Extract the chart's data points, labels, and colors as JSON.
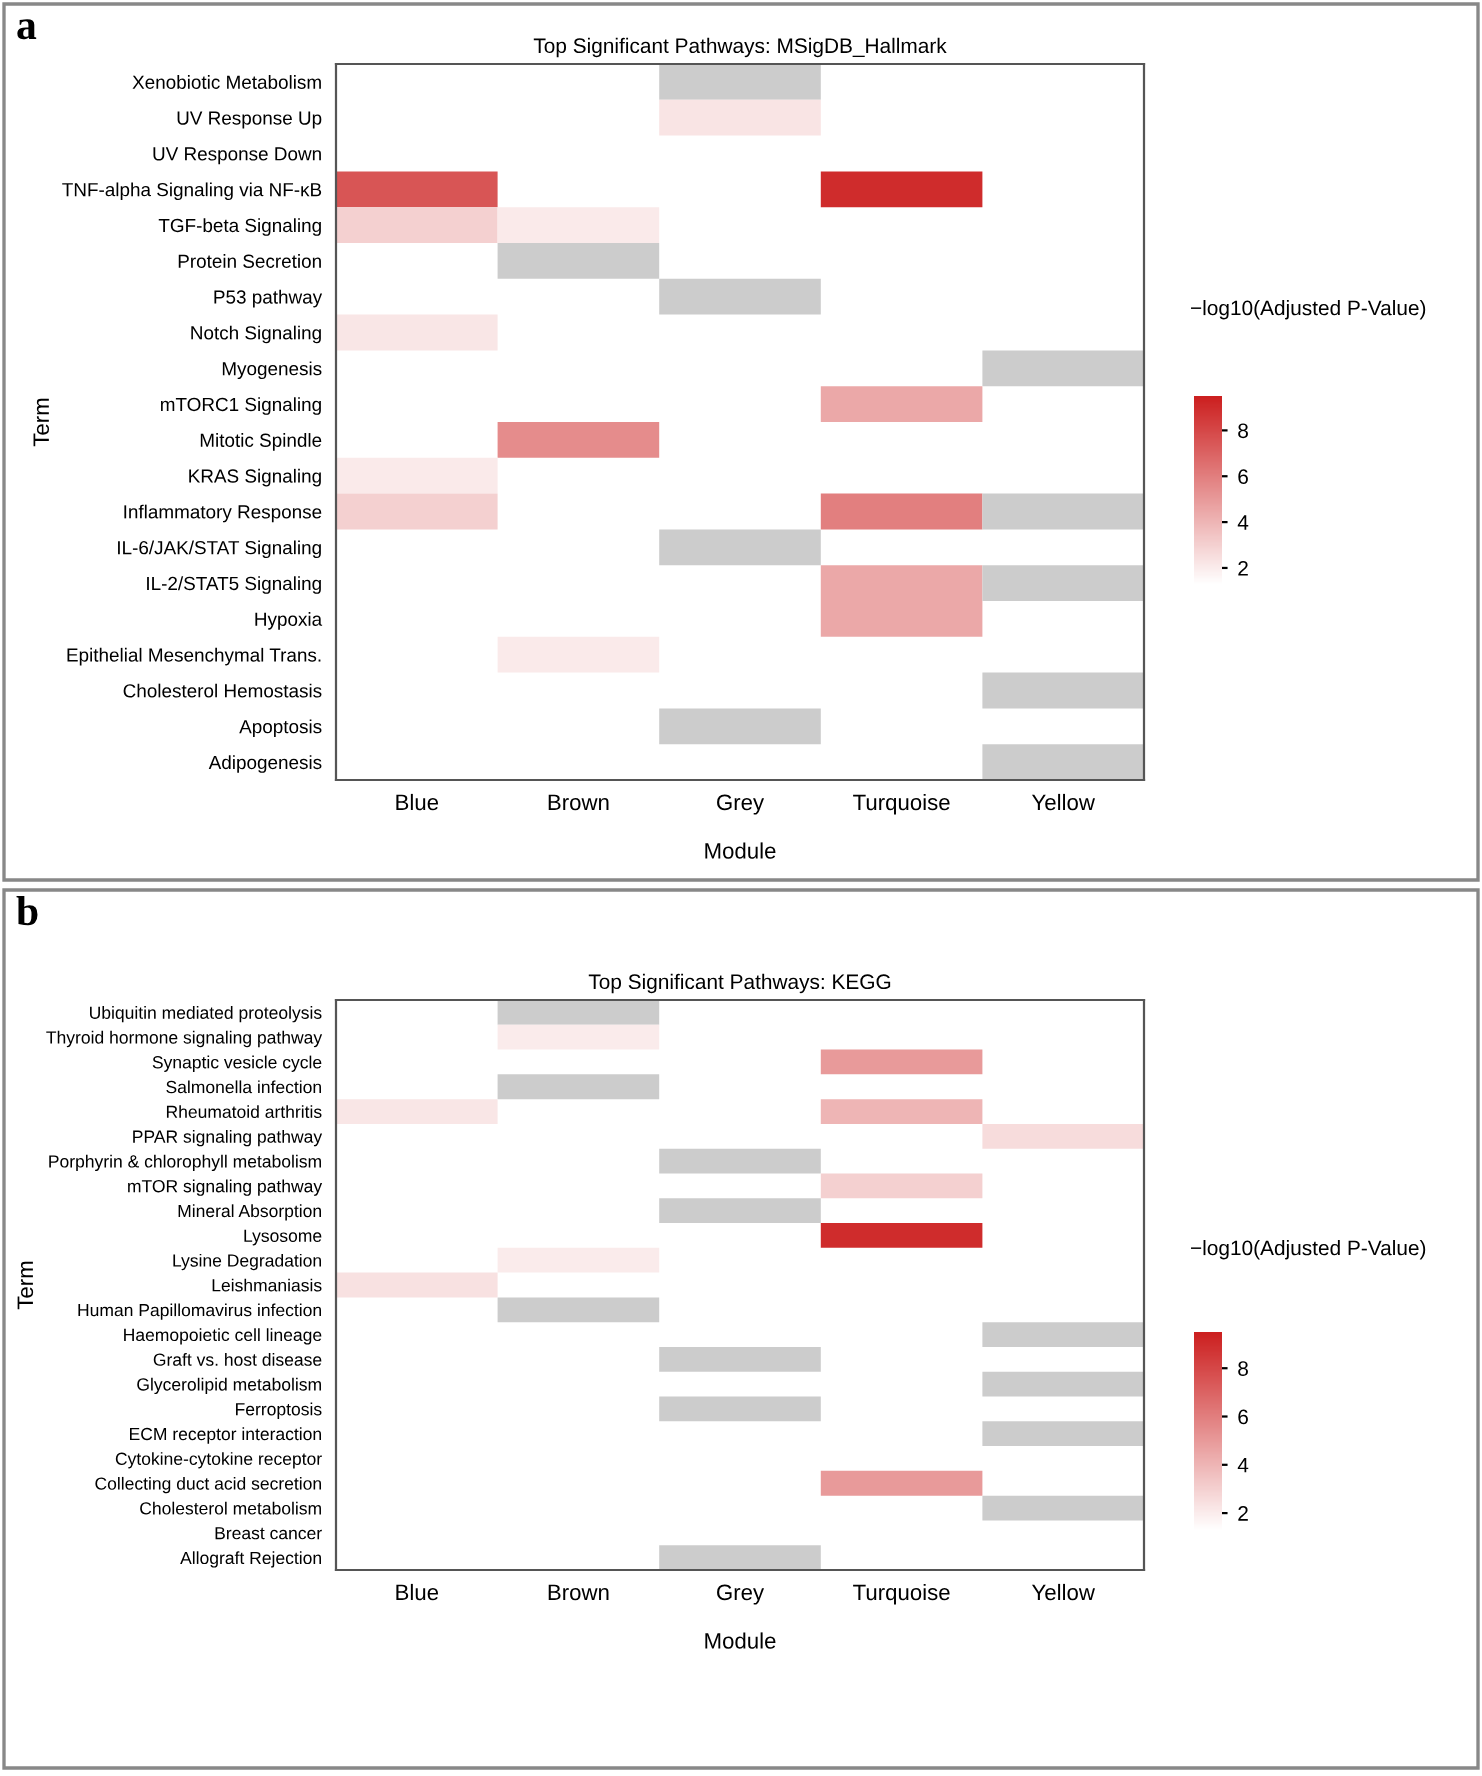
{
  "chart_data": [
    {
      "type": "heatmap",
      "title": "Top Significant Pathways: MSigDB_Hallmark",
      "xlabel": "Module",
      "ylabel": "Term",
      "clabel": "−log10(Adjusted P-Value)",
      "annotations": [
        "a"
      ],
      "categories": [
        "Blue",
        "Brown",
        "Grey",
        "Turquoise",
        "Yellow"
      ],
      "y_categories": [
        "Xenobiotic Metabolism",
        "UV Response Up",
        "UV Response Down",
        "TNF-alpha Signaling via NF-κB",
        "TGF-beta Signaling",
        "Protein Secretion",
        "P53 pathway",
        "Notch Signaling",
        "Myogenesis",
        "mTORC1 Signaling",
        "Mitotic Spindle",
        "KRAS Signaling",
        "Inflammatory Response",
        "IL-6/JAK/STAT Signaling",
        "IL-2/STAT5 Signaling",
        "Hypoxia",
        "Epithelial Mesenchymal Trans.",
        "Cholesterol Hemostasis",
        "Apoptosis",
        "Adipogenesis"
      ],
      "cells": [
        [
          null,
          null,
          null,
          null,
          null
        ],
        [
          null,
          null,
          2.3,
          null,
          null
        ],
        [
          null,
          null,
          null,
          null,
          null
        ],
        [
          7.5,
          null,
          null,
          9,
          null
        ],
        [
          3,
          2.1,
          null,
          null,
          null
        ],
        [
          null,
          null,
          null,
          null,
          null
        ],
        [
          null,
          null,
          null,
          null,
          null
        ],
        [
          2.2,
          null,
          null,
          null,
          null
        ],
        [
          null,
          null,
          null,
          null,
          null
        ],
        [
          null,
          null,
          null,
          4.5,
          null
        ],
        [
          null,
          5.5,
          null,
          null,
          null
        ],
        [
          2.1,
          null,
          null,
          null,
          null
        ],
        [
          3,
          null,
          null,
          6,
          null
        ],
        [
          null,
          null,
          null,
          null,
          null
        ],
        [
          null,
          null,
          null,
          4.5,
          null
        ],
        [
          null,
          null,
          null,
          4.5,
          null
        ],
        [
          null,
          2.1,
          null,
          null,
          null
        ],
        [
          null,
          null,
          null,
          null,
          null
        ],
        [
          null,
          null,
          null,
          null,
          null
        ],
        [
          null,
          null,
          null,
          null,
          null
        ]
      ],
      "colors": [
        [
          null,
          null,
          "#cccccc",
          null,
          null
        ],
        [
          null,
          null,
          null,
          null,
          null
        ],
        [
          null,
          null,
          null,
          null,
          null
        ],
        [
          null,
          null,
          null,
          null,
          null
        ],
        [
          null,
          null,
          null,
          null,
          null
        ],
        [
          null,
          "#cccccc",
          null,
          null,
          null
        ],
        [
          null,
          null,
          "#cccccc",
          null,
          null
        ],
        [
          null,
          null,
          null,
          null,
          null
        ],
        [
          null,
          null,
          null,
          null,
          "#cccccc"
        ],
        [
          null,
          null,
          null,
          null,
          null
        ],
        [
          null,
          null,
          null,
          null,
          null
        ],
        [
          null,
          null,
          null,
          null,
          null
        ],
        [
          null,
          null,
          null,
          null,
          "#cccccc"
        ],
        [
          null,
          null,
          "#cccccc",
          null,
          null
        ],
        [
          null,
          null,
          null,
          null,
          "#cccccc"
        ],
        [
          null,
          null,
          null,
          null,
          null
        ],
        [
          null,
          null,
          null,
          null,
          null
        ],
        [
          null,
          null,
          null,
          null,
          "#cccccc"
        ],
        [
          null,
          null,
          "#cccccc",
          null,
          null
        ],
        [
          null,
          null,
          null,
          null,
          "#cccccc"
        ]
      ],
      "clim": [
        1.3,
        9.5
      ],
      "cticks": [
        2,
        4,
        6,
        8
      ]
    },
    {
      "type": "heatmap",
      "title": "Top Significant Pathways: KEGG",
      "xlabel": "Module",
      "ylabel": "Term",
      "clabel": "−log10(Adjusted P-Value)",
      "annotations": [
        "b"
      ],
      "categories": [
        "Blue",
        "Brown",
        "Grey",
        "Turquoise",
        "Yellow"
      ],
      "y_categories": [
        "Ubiquitin mediated proteolysis",
        "Thyroid hormone signaling pathway",
        "Synaptic vesicle cycle",
        "Salmonella infection",
        "Rheumatoid arthritis",
        "PPAR signaling pathway",
        "Porphyrin & chlorophyll metabolism",
        "mTOR signaling pathway",
        "Mineral Absorption",
        "Lysosome",
        "Lysine Degradation",
        "Leishmaniasis",
        "Human Papillomavirus infection",
        "Haemopoietic cell lineage",
        "Graft vs. host disease",
        "Glycerolipid metabolism",
        "Ferroptosis",
        "ECM receptor interaction",
        "Cytokine-cytokine receptor",
        "Collecting duct acid secretion",
        "Cholesterol metabolism",
        "Breast cancer",
        "Allograft Rejection"
      ],
      "cells": [
        [
          null,
          null,
          null,
          null,
          null
        ],
        [
          null,
          2.05,
          null,
          null,
          null
        ],
        [
          null,
          null,
          null,
          5,
          null
        ],
        [
          null,
          null,
          null,
          null,
          null
        ],
        [
          2.2,
          null,
          null,
          4,
          null
        ],
        [
          null,
          null,
          null,
          null,
          2.6
        ],
        [
          null,
          null,
          null,
          null,
          null
        ],
        [
          null,
          null,
          null,
          3,
          null
        ],
        [
          null,
          null,
          null,
          null,
          null
        ],
        [
          null,
          null,
          null,
          9,
          null
        ],
        [
          null,
          2.05,
          null,
          null,
          null
        ],
        [
          2.4,
          null,
          null,
          null,
          null
        ],
        [
          null,
          null,
          null,
          null,
          null
        ],
        [
          null,
          null,
          null,
          null,
          null
        ],
        [
          null,
          null,
          null,
          null,
          null
        ],
        [
          null,
          null,
          null,
          null,
          null
        ],
        [
          null,
          null,
          null,
          null,
          null
        ],
        [
          null,
          null,
          null,
          null,
          null
        ],
        [
          null,
          null,
          null,
          null,
          null
        ],
        [
          null,
          null,
          null,
          5,
          null
        ],
        [
          null,
          null,
          null,
          null,
          null
        ],
        [
          null,
          null,
          null,
          null,
          null
        ],
        [
          null,
          null,
          null,
          null,
          null
        ]
      ],
      "colors": [
        [
          null,
          "#cccccc",
          null,
          null,
          null
        ],
        [
          null,
          null,
          null,
          null,
          null
        ],
        [
          null,
          null,
          null,
          null,
          null
        ],
        [
          null,
          "#cccccc",
          null,
          null,
          null
        ],
        [
          null,
          null,
          null,
          null,
          null
        ],
        [
          null,
          null,
          null,
          null,
          null
        ],
        [
          null,
          null,
          "#cccccc",
          null,
          null
        ],
        [
          null,
          null,
          null,
          null,
          null
        ],
        [
          null,
          null,
          "#cccccc",
          null,
          null
        ],
        [
          null,
          null,
          null,
          null,
          null
        ],
        [
          null,
          null,
          null,
          null,
          null
        ],
        [
          null,
          null,
          null,
          null,
          null
        ],
        [
          null,
          "#cccccc",
          null,
          null,
          null
        ],
        [
          null,
          null,
          null,
          null,
          "#cccccc"
        ],
        [
          null,
          null,
          "#cccccc",
          null,
          null
        ],
        [
          null,
          null,
          null,
          null,
          "#cccccc"
        ],
        [
          null,
          null,
          "#cccccc",
          null,
          null
        ],
        [
          null,
          null,
          null,
          null,
          "#cccccc"
        ],
        [
          null,
          null,
          null,
          null,
          null
        ],
        [
          null,
          null,
          null,
          null,
          null
        ],
        [
          null,
          null,
          null,
          null,
          "#cccccc"
        ],
        [
          null,
          null,
          null,
          null,
          null
        ],
        [
          null,
          null,
          "#cccccc",
          null,
          null
        ]
      ],
      "clim": [
        1.3,
        9.5
      ],
      "cticks": [
        2,
        4,
        6,
        8
      ]
    }
  ]
}
